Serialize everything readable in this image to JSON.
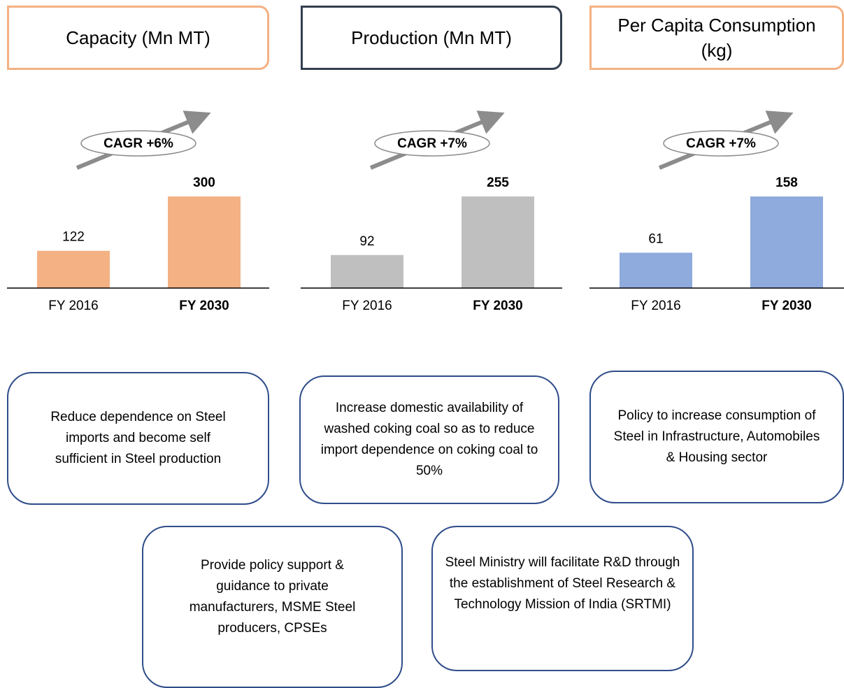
{
  "chart_data": [
    {
      "type": "bar",
      "title": "Capacity (Mn MT)",
      "annotation": "CAGR +6%",
      "categories": [
        "FY 2016",
        "FY 2030"
      ],
      "values": [
        122,
        300
      ],
      "color": "#f4b183",
      "title_border": "#f4b183"
    },
    {
      "type": "bar",
      "title": "Production (Mn MT)",
      "annotation": "CAGR +7%",
      "categories": [
        "FY 2016",
        "FY 2030"
      ],
      "values": [
        92,
        255
      ],
      "color": "#bfbfbf",
      "title_border": "#333f50"
    },
    {
      "type": "bar",
      "title": "Per Capita Consumption (kg)",
      "annotation": "CAGR +7%",
      "categories": [
        "FY 2016",
        "FY 2030"
      ],
      "values": [
        61,
        158
      ],
      "color": "#8faadc",
      "title_border": "#f4b183"
    }
  ],
  "notes": [
    "Reduce dependence on Steel imports and become self sufficient in Steel production",
    "Increase domestic availability of washed coking coal so as to reduce import dependence on coking coal to 50%",
    "Policy to increase consumption of Steel in Infrastructure, Automobiles & Housing sector",
    "Provide policy support & guidance to private manufacturers, MSME Steel producers, CPSEs",
    "Steel Ministry will facilitate R&D through the establishment of Steel Research & Technology Mission of India (SRTMI)"
  ]
}
